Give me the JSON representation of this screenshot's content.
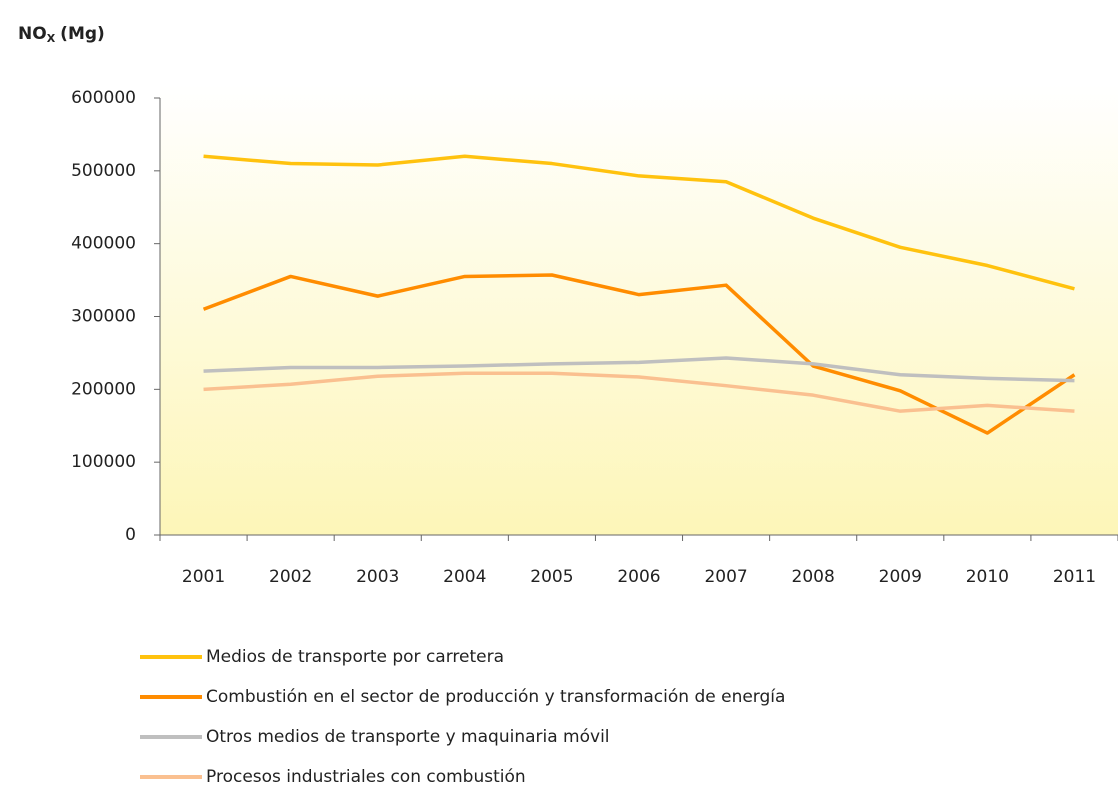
{
  "chart_data": {
    "type": "line",
    "title": {
      "main": "NO",
      "sub": "X",
      "unit": "(Mg)"
    },
    "categories": [
      "2001",
      "2002",
      "2003",
      "2004",
      "2005",
      "2006",
      "2007",
      "2008",
      "2009",
      "2010",
      "2011"
    ],
    "series": [
      {
        "name": "Medios de transporte por carretera",
        "color": "#ffc20e",
        "values": [
          520000,
          510000,
          508000,
          520000,
          510000,
          493000,
          485000,
          435000,
          395000,
          370000,
          338000
        ]
      },
      {
        "name": "Combustión en el sector de producción y transformación de energía",
        "color": "#ff8c00",
        "values": [
          310000,
          355000,
          328000,
          355000,
          357000,
          330000,
          343000,
          232000,
          198000,
          140000,
          220000
        ]
      },
      {
        "name": "Otros medios de transporte y maquinaria móvil",
        "color": "#bfbfbf",
        "values": [
          225000,
          230000,
          230000,
          232000,
          235000,
          237000,
          243000,
          235000,
          220000,
          215000,
          212000
        ]
      },
      {
        "name": "Procesos industriales con combustión",
        "color": "#fac090",
        "values": [
          200000,
          207000,
          218000,
          222000,
          222000,
          217000,
          205000,
          192000,
          170000,
          178000,
          170000
        ]
      }
    ],
    "ylim": [
      0,
      600000
    ],
    "yticks": [
      0,
      100000,
      200000,
      300000,
      400000,
      500000,
      600000
    ],
    "grid": false
  }
}
